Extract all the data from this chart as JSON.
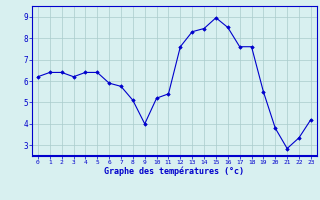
{
  "x": [
    0,
    1,
    2,
    3,
    4,
    5,
    6,
    7,
    8,
    9,
    10,
    11,
    12,
    13,
    14,
    15,
    16,
    17,
    18,
    19,
    20,
    21,
    22,
    23
  ],
  "y": [
    6.2,
    6.4,
    6.4,
    6.2,
    6.4,
    6.4,
    5.9,
    5.75,
    5.1,
    4.0,
    5.2,
    5.4,
    7.6,
    8.3,
    8.45,
    8.95,
    8.5,
    7.6,
    7.6,
    5.5,
    3.8,
    2.85,
    3.35,
    4.2
  ],
  "line_color": "#0000cc",
  "marker": "D",
  "marker_size": 1.8,
  "bg_color": "#d8f0f0",
  "grid_color": "#aacccc",
  "xlabel": "Graphe des températures (°c)",
  "xlabel_color": "#0000cc",
  "tick_color": "#0000cc",
  "yticks": [
    3,
    4,
    5,
    6,
    7,
    8,
    9
  ],
  "ylim": [
    2.5,
    9.5
  ],
  "xlim": [
    -0.5,
    23.5
  ],
  "xtick_fontsize": 4.5,
  "ytick_fontsize": 5.5,
  "xlabel_fontsize": 6.0
}
